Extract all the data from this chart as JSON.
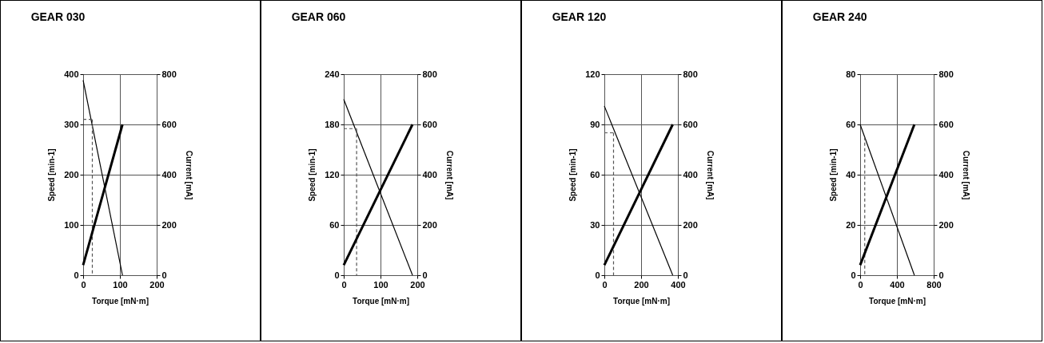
{
  "chart_data": [
    {
      "type": "line",
      "title": "GEAR 030",
      "xlabel": "Torque [mN·m]",
      "ylabel": "Speed [min-1]",
      "y2label": "Current [mA]",
      "xlim": [
        0,
        200
      ],
      "xticks": [
        0,
        100,
        200
      ],
      "ylim": [
        0,
        400
      ],
      "yticks": [
        0,
        100,
        200,
        300,
        400
      ],
      "y2lim": [
        0,
        800
      ],
      "y2ticks": [
        0,
        200,
        400,
        600,
        800
      ],
      "grid": true,
      "series": [
        {
          "color": "#000000",
          "x": [
            0,
            107
          ],
          "values": [
            388,
            0
          ],
          "line_style": "solid"
        },
        {
          "color": "#000000",
          "x": [
            0,
            107
          ],
          "values": [
            40,
            600
          ],
          "axis": "y2",
          "line_style": "solid"
        },
        {
          "color": "#555555",
          "x": [
            0,
            25
          ],
          "values": [
            310,
            310
          ],
          "line_style": "dashed"
        },
        {
          "color": "#555555",
          "x": [
            25,
            25
          ],
          "values": [
            310,
            0
          ],
          "line_style": "dashed"
        }
      ]
    },
    {
      "type": "line",
      "title": "GEAR 060",
      "xlabel": "Torque [mN·m]",
      "ylabel": "Speed [min-1]",
      "y2label": "Current [mA]",
      "xlim": [
        0,
        200
      ],
      "xticks": [
        0,
        100,
        200
      ],
      "ylim": [
        0,
        240
      ],
      "yticks": [
        0,
        60,
        120,
        180,
        240
      ],
      "y2lim": [
        0,
        800
      ],
      "y2ticks": [
        0,
        200,
        400,
        600,
        800
      ],
      "grid": true,
      "series": [
        {
          "color": "#000000",
          "x": [
            0,
            187
          ],
          "values": [
            210,
            0
          ],
          "line_style": "solid"
        },
        {
          "color": "#000000",
          "x": [
            0,
            187
          ],
          "values": [
            40,
            600
          ],
          "axis": "y2",
          "line_style": "solid"
        },
        {
          "color": "#555555",
          "x": [
            0,
            35
          ],
          "values": [
            175,
            175
          ],
          "line_style": "dashed"
        },
        {
          "color": "#555555",
          "x": [
            35,
            35
          ],
          "values": [
            175,
            0
          ],
          "line_style": "dashed"
        }
      ]
    },
    {
      "type": "line",
      "title": "GEAR 120",
      "xlabel": "Torque [mN·m]",
      "ylabel": "Speed [min-1]",
      "y2label": "Current [mA]",
      "xlim": [
        0,
        400
      ],
      "xticks": [
        0,
        200,
        400
      ],
      "ylim": [
        0,
        120
      ],
      "yticks": [
        0,
        30,
        60,
        90,
        120
      ],
      "y2lim": [
        0,
        800
      ],
      "y2ticks": [
        0,
        200,
        400,
        600,
        800
      ],
      "grid": true,
      "series": [
        {
          "color": "#000000",
          "x": [
            0,
            372
          ],
          "values": [
            101,
            0
          ],
          "line_style": "solid"
        },
        {
          "color": "#000000",
          "x": [
            0,
            372
          ],
          "values": [
            40,
            600
          ],
          "axis": "y2",
          "line_style": "solid"
        },
        {
          "color": "#555555",
          "x": [
            0,
            50
          ],
          "values": [
            85,
            85
          ],
          "line_style": "dashed"
        },
        {
          "color": "#555555",
          "x": [
            50,
            50
          ],
          "values": [
            85,
            0
          ],
          "line_style": "dashed"
        }
      ]
    },
    {
      "type": "line",
      "title": "GEAR 240",
      "xlabel": "Torque [mN·m]",
      "ylabel": "Speed [min-1]",
      "y2label": "Current [mA]",
      "xlim": [
        0,
        800
      ],
      "xticks": [
        0,
        400,
        800
      ],
      "ylim": [
        0,
        80
      ],
      "yticks": [
        0,
        20,
        40,
        60,
        80
      ],
      "y2lim": [
        0,
        800
      ],
      "y2ticks": [
        0,
        200,
        400,
        600,
        800
      ],
      "grid": true,
      "series": [
        {
          "color": "#000000",
          "x": [
            0,
            590
          ],
          "values": [
            60,
            0
          ],
          "line_style": "solid"
        },
        {
          "color": "#000000",
          "x": [
            0,
            590
          ],
          "values": [
            40,
            600
          ],
          "axis": "y2",
          "line_style": "solid"
        },
        {
          "color": "#555555",
          "x": [
            50,
            50
          ],
          "values": [
            55,
            0
          ],
          "line_style": "dashed"
        }
      ]
    }
  ]
}
